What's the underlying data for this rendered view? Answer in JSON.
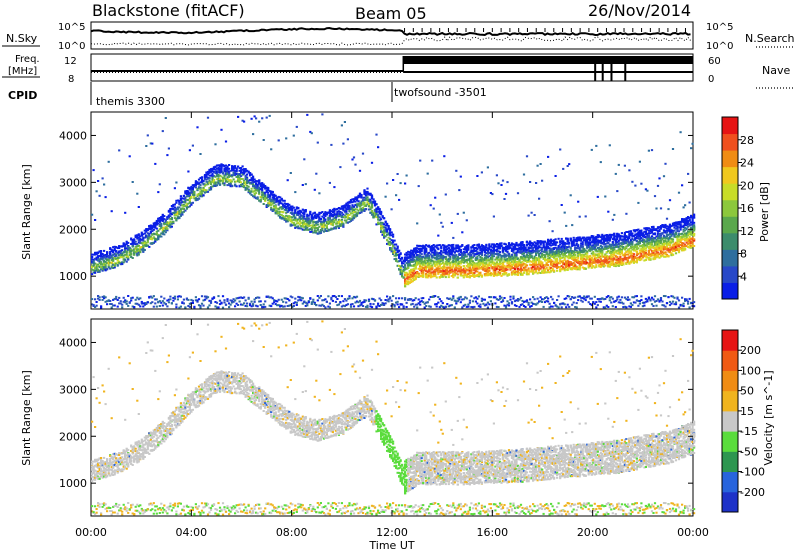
{
  "header": {
    "station": "Blackstone (fitACF)",
    "beam": "Beam 05",
    "date": "26/Nov/2014"
  },
  "top_panels": {
    "nsky_label": "N.Sky",
    "nsearch_label": "N.Search",
    "nsky_ticks": [
      "10^5",
      "10^0"
    ],
    "nsearch_ticks": [
      "10^5",
      "10^0"
    ],
    "freq_label_line1": "Freq.",
    "freq_label_line2": "[MHz]",
    "freq_ticks": [
      "12",
      "8"
    ],
    "nave_label": "Nave",
    "nave_ticks": [
      "60",
      "0"
    ],
    "cpid_label": "CPID",
    "cpid_segments": [
      {
        "name": "themis 3300",
        "start_hour": 0,
        "end_hour": 12.45
      },
      {
        "name": "twofsound -3501",
        "start_hour": 12.45,
        "end_hour": 24
      }
    ]
  },
  "chart_data": [
    {
      "type": "heatmap",
      "title": "Power",
      "ylabel": "Slant Range [km]",
      "xlabel": "",
      "xlim": [
        0,
        24
      ],
      "ylim": [
        300,
        4500
      ],
      "yticks": [
        1000,
        2000,
        3000,
        4000
      ],
      "colorbar": {
        "label": "Power [dB]",
        "ticks": [
          4,
          8,
          12,
          16,
          20,
          24,
          28
        ],
        "range": [
          0,
          32
        ],
        "colors": [
          "#0a1ee6",
          "#2848c8",
          "#2e6e9e",
          "#3c8c6c",
          "#5aa84c",
          "#8cc83c",
          "#c8dc28",
          "#f0c81e",
          "#f08c14",
          "#f0501e",
          "#e61414"
        ]
      },
      "series": [
        {
          "name": "ground scatter band",
          "points": [
            [
              0.0,
              1200
            ],
            [
              1.0,
              1350
            ],
            [
              2.0,
              1650
            ],
            [
              3.0,
              2100
            ],
            [
              4.0,
              2700
            ],
            [
              5.0,
              3100
            ],
            [
              6.0,
              3050
            ],
            [
              7.0,
              2600
            ],
            [
              8.0,
              2200
            ],
            [
              9.0,
              2050
            ],
            [
              10.0,
              2200
            ],
            [
              11.0,
              2600
            ],
            [
              12.0,
              1600
            ],
            [
              12.45,
              1000
            ],
            [
              13,
              1200
            ],
            [
              15,
              1200
            ],
            [
              17,
              1250
            ],
            [
              19,
              1350
            ],
            [
              21,
              1450
            ],
            [
              23,
              1650
            ],
            [
              24,
              1850
            ]
          ]
        },
        {
          "name": "near range scatter",
          "points": [
            [
              0,
              400
            ],
            [
              6,
              420
            ],
            [
              12,
              450
            ],
            [
              13,
              400
            ],
            [
              24,
              420
            ]
          ]
        }
      ]
    },
    {
      "type": "heatmap",
      "title": "Velocity",
      "ylabel": "Slant Range [km]",
      "xlabel": "Time UT",
      "xlim": [
        0,
        24
      ],
      "ylim": [
        300,
        4500
      ],
      "yticks": [
        1000,
        2000,
        3000,
        4000
      ],
      "xticks": [
        "00:00",
        "04:00",
        "08:00",
        "12:00",
        "16:00",
        "20:00",
        "00:00"
      ],
      "colorbar": {
        "label": "Velocity [m s^-1]",
        "ticks": [
          200,
          100,
          50,
          15,
          -15,
          -50,
          -100,
          -200
        ],
        "colors": [
          "#1e32c8",
          "#2864dc",
          "#2d9650",
          "#5adc3c",
          "#c8c8c8",
          "#f0b41e",
          "#f08c14",
          "#f05a14",
          "#e61414"
        ]
      }
    }
  ]
}
